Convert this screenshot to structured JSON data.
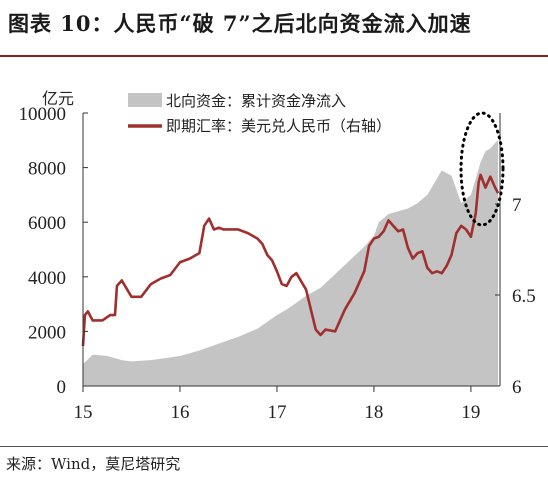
{
  "title": "图表 10：人民币“破 7”之后北向资金流入加速",
  "source": "来源：Wind，莫尼塔研究",
  "colors": {
    "area": "#c4c4c4",
    "line": "#a0302e",
    "text": "#222222",
    "rule": "#8c1f1f",
    "ellipse": "#000000"
  },
  "chart_data": {
    "type": "area",
    "ylabel_left": "亿元",
    "x_ticks": [
      "15",
      "16",
      "17",
      "18",
      "19"
    ],
    "y_left_ticks": [
      "0",
      "2000",
      "4000",
      "6000",
      "8000",
      "10000"
    ],
    "y_right_ticks": [
      "6",
      "6.5",
      "7"
    ],
    "y_left_lim": [
      0,
      10000
    ],
    "y_right_lim": [
      6.0,
      7.5
    ],
    "x_lim": [
      2015.0,
      2019.3
    ],
    "legend_position": "top",
    "annotations": [
      "dotted ellipse around 2019 peak"
    ],
    "series": [
      {
        "name": "北向资金：累计资金净流入",
        "axis": "left",
        "kind": "area",
        "x": [
          2015.0,
          2015.1,
          2015.25,
          2015.4,
          2015.5,
          2015.7,
          2015.9,
          2016.0,
          2016.2,
          2016.4,
          2016.6,
          2016.8,
          2016.9,
          2017.0,
          2017.1,
          2017.2,
          2017.3,
          2017.45,
          2017.6,
          2017.75,
          2017.9,
          2018.0,
          2018.05,
          2018.15,
          2018.25,
          2018.35,
          2018.45,
          2018.55,
          2018.65,
          2018.7,
          2018.8,
          2018.9,
          2019.0,
          2019.05,
          2019.1,
          2019.15,
          2019.2,
          2019.25,
          2019.28
        ],
        "values": [
          800,
          1150,
          1100,
          950,
          900,
          950,
          1050,
          1100,
          1300,
          1550,
          1800,
          2100,
          2350,
          2600,
          2800,
          3050,
          3300,
          3600,
          4100,
          4600,
          5100,
          5500,
          6000,
          6300,
          6400,
          6500,
          6700,
          7000,
          7600,
          7900,
          7700,
          6700,
          7000,
          7600,
          8200,
          8600,
          8700,
          8900,
          9000
        ]
      },
      {
        "name": "即期汇率：美元兑人民币（右轴）",
        "axis": "right",
        "kind": "line",
        "x": [
          2015.0,
          2015.02,
          2015.05,
          2015.1,
          2015.2,
          2015.28,
          2015.33,
          2015.35,
          2015.4,
          2015.5,
          2015.6,
          2015.7,
          2015.8,
          2015.9,
          2016.0,
          2016.1,
          2016.2,
          2016.25,
          2016.3,
          2016.35,
          2016.4,
          2016.45,
          2016.5,
          2016.6,
          2016.7,
          2016.8,
          2016.85,
          2016.9,
          2016.95,
          2017.0,
          2017.05,
          2017.1,
          2017.15,
          2017.2,
          2017.3,
          2017.4,
          2017.45,
          2017.5,
          2017.6,
          2017.7,
          2017.8,
          2017.9,
          2017.95,
          2018.0,
          2018.05,
          2018.1,
          2018.15,
          2018.2,
          2018.25,
          2018.3,
          2018.35,
          2018.4,
          2018.45,
          2018.5,
          2018.55,
          2018.6,
          2018.65,
          2018.7,
          2018.75,
          2018.8,
          2018.85,
          2018.9,
          2018.95,
          2019.0,
          2019.05,
          2019.08,
          2019.1,
          2019.15,
          2019.2,
          2019.25,
          2019.28
        ],
        "values": [
          6.22,
          6.39,
          6.41,
          6.36,
          6.36,
          6.39,
          6.39,
          6.55,
          6.58,
          6.49,
          6.49,
          6.56,
          6.59,
          6.61,
          6.68,
          6.7,
          6.73,
          6.88,
          6.92,
          6.86,
          6.87,
          6.86,
          6.86,
          6.86,
          6.84,
          6.81,
          6.78,
          6.72,
          6.69,
          6.63,
          6.56,
          6.55,
          6.6,
          6.62,
          6.53,
          6.31,
          6.28,
          6.31,
          6.3,
          6.42,
          6.51,
          6.63,
          6.77,
          6.81,
          6.82,
          6.85,
          6.91,
          6.88,
          6.85,
          6.86,
          6.76,
          6.7,
          6.73,
          6.74,
          6.65,
          6.62,
          6.63,
          6.62,
          6.66,
          6.72,
          6.84,
          6.88,
          6.86,
          6.82,
          6.95,
          7.12,
          7.16,
          7.09,
          7.15,
          7.09,
          7.06
        ]
      }
    ]
  }
}
